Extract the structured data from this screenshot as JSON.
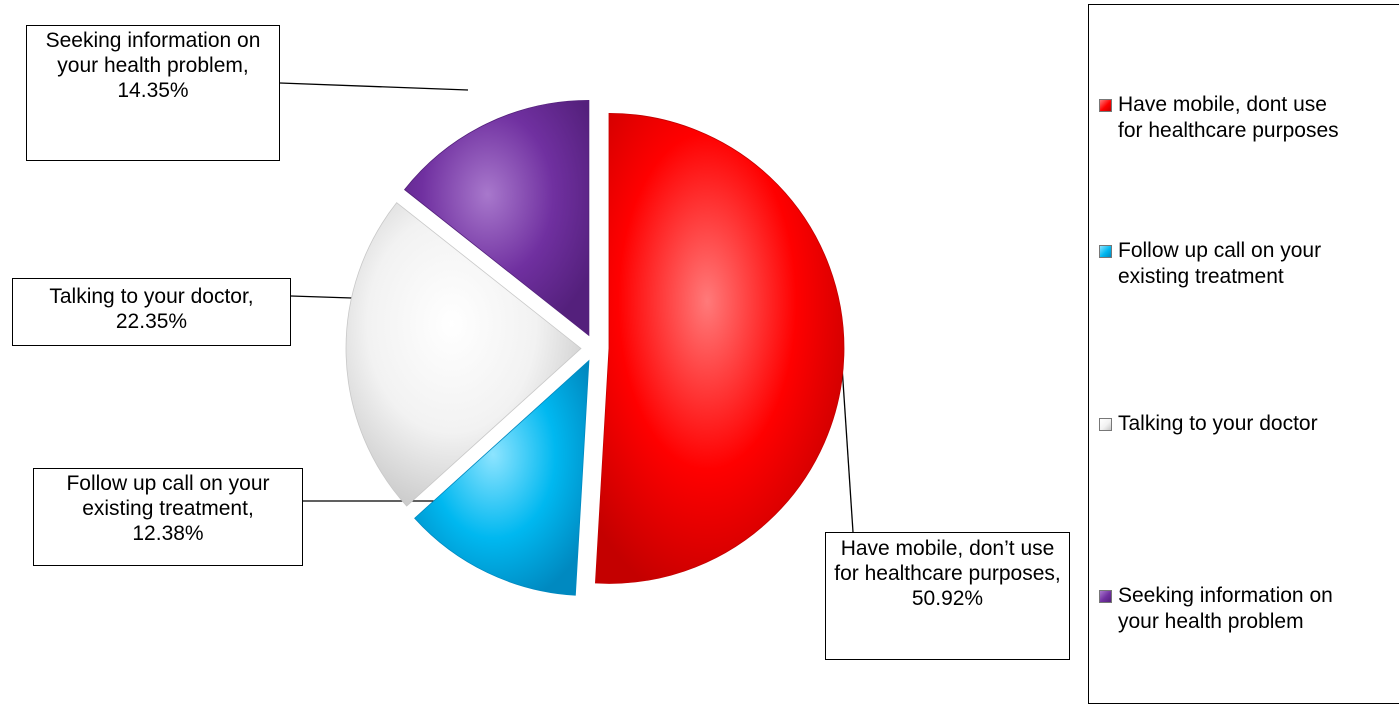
{
  "chart_data": {
    "type": "pie",
    "exploded": true,
    "start_angle_deg": 0,
    "direction": "clockwise",
    "slices": [
      {
        "key": "mobile",
        "legend": "Have mobile, dont use\nfor healthcare purposes",
        "label_name": "Have mobile, don’t use for healthcare purposes,",
        "label_value": "50.92%",
        "value": 50.92,
        "color": "#ff0000",
        "color_light": "#ff7a7a",
        "color_dark": "#c40000"
      },
      {
        "key": "followup",
        "legend": "Follow up call on your\nexisting treatment",
        "label_name": "Follow up call on your existing treatment,",
        "label_value": "12.38%",
        "value": 12.38,
        "color": "#00b8f0",
        "color_light": "#8de4ff",
        "color_dark": "#0089c0"
      },
      {
        "key": "doctor",
        "legend": "Talking to your doctor",
        "label_name": "Talking to your doctor,",
        "label_value": "22.35%",
        "value": 22.35,
        "color": "#f2f2f2",
        "color_light": "#ffffff",
        "color_dark": "#c8c8c8"
      },
      {
        "key": "seeking",
        "legend": "Seeking information on\nyour health problem",
        "label_name": "Seeking information on your health problem,",
        "label_value": "14.35%",
        "value": 14.35,
        "color": "#7030a0",
        "color_light": "#a878cc",
        "color_dark": "#54207c"
      }
    ]
  }
}
